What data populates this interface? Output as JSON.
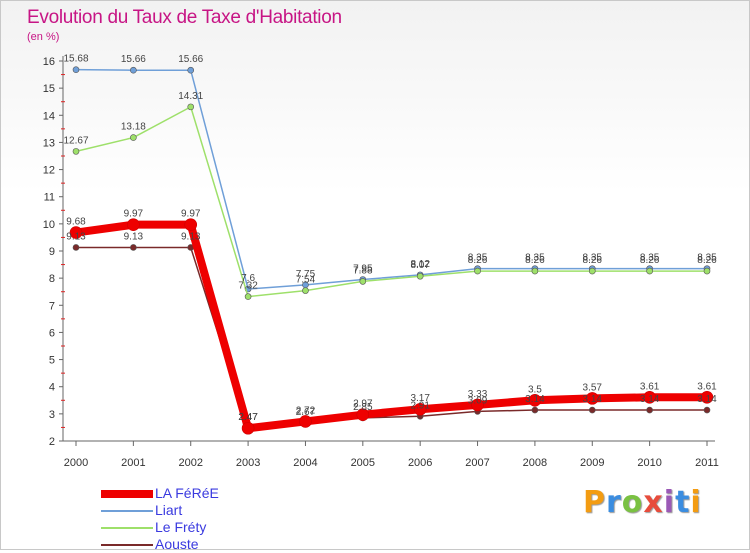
{
  "title": "Evolution du Taux de Taxe d'Habitation",
  "unit": "(en %)",
  "brand": {
    "text": "Proxiti",
    "colors": [
      "#f39c12",
      "#3b8de0",
      "#7ac142",
      "#e74c3c",
      "#9b59b6",
      "#3b8de0",
      "#f39c12"
    ]
  },
  "chart_data": {
    "type": "line",
    "title": "Evolution du Taux de Taxe d'Habitation",
    "ylabel": "(en %)",
    "x": [
      "2000",
      "2001",
      "2002",
      "2003",
      "2004",
      "2005",
      "2006",
      "2007",
      "2008",
      "2009",
      "2010",
      "2011"
    ],
    "ylim": [
      2,
      16
    ],
    "yticks": [
      2,
      3,
      4,
      5,
      6,
      7,
      8,
      9,
      10,
      11,
      12,
      13,
      14,
      15,
      16
    ],
    "grid": false,
    "legend_position": "bottom-left",
    "series": [
      {
        "name": "LA FéRéE",
        "color": "#ee0000",
        "width": 8,
        "values": [
          9.68,
          9.97,
          9.97,
          2.47,
          2.72,
          2.97,
          3.17,
          3.33,
          3.5,
          3.57,
          3.61,
          3.61
        ]
      },
      {
        "name": "Liart",
        "color": "#6f9fd8",
        "width": 1.5,
        "values": [
          15.68,
          15.66,
          15.66,
          7.6,
          7.75,
          7.95,
          8.12,
          8.35,
          8.35,
          8.35,
          8.35,
          8.35
        ]
      },
      {
        "name": "Le Fréty",
        "color": "#9ee06a",
        "width": 1.5,
        "values": [
          12.67,
          13.18,
          14.31,
          7.32,
          7.54,
          7.88,
          8.07,
          8.26,
          8.26,
          8.26,
          8.26,
          8.26
        ]
      },
      {
        "name": "Aouste",
        "color": "#7a2a2a",
        "width": 1.5,
        "values": [
          9.13,
          9.13,
          9.13,
          2.47,
          2.67,
          2.85,
          2.91,
          3.09,
          3.14,
          3.14,
          3.14,
          3.14
        ]
      }
    ]
  }
}
